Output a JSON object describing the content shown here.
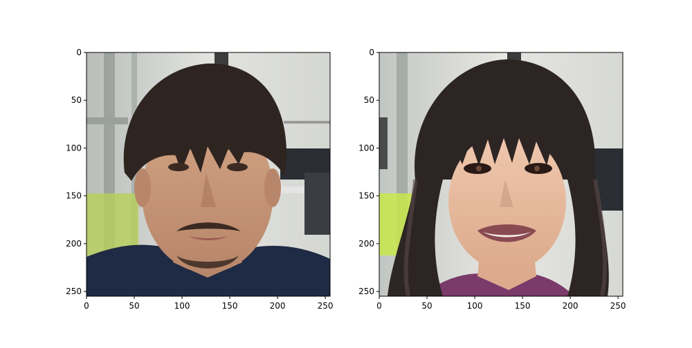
{
  "figure": {
    "background": "#ffffff",
    "axis_color": "#000000"
  },
  "panels": [
    {
      "name": "left-panel",
      "content": "photo-portrait",
      "xlim": [
        0,
        255
      ],
      "ylim": [
        255,
        0
      ],
      "xticks": [
        0,
        50,
        100,
        150,
        200,
        250
      ],
      "yticks": [
        0,
        50,
        100,
        150,
        200,
        250
      ],
      "xtick_labels": [
        "0",
        "50",
        "100",
        "150",
        "200",
        "250"
      ],
      "ytick_labels": [
        "0",
        "50",
        "100",
        "150",
        "200",
        "250"
      ],
      "colors": {
        "office_bg": "#c9ccc9",
        "hair": "#2e2420",
        "skin": "#c69676",
        "sweater": "#1f2a44",
        "beard": "#3a2a22"
      }
    },
    {
      "name": "right-panel",
      "content": "stylized-portrait",
      "xlim": [
        0,
        255
      ],
      "ylim": [
        255,
        0
      ],
      "xticks": [
        0,
        50,
        100,
        150,
        200,
        250
      ],
      "yticks": [
        0,
        50,
        100,
        150,
        200,
        250
      ],
      "xtick_labels": [
        "0",
        "50",
        "100",
        "150",
        "200",
        "250"
      ],
      "ytick_labels": [
        "0",
        "50",
        "100",
        "150",
        "200",
        "250"
      ],
      "colors": {
        "office_bg": "#cfd1cd",
        "hair": "#2d2524",
        "skin": "#e8bca0",
        "lips": "#8a4a52",
        "top": "#7a3a6a",
        "accent": "#c8e84a"
      }
    }
  ]
}
